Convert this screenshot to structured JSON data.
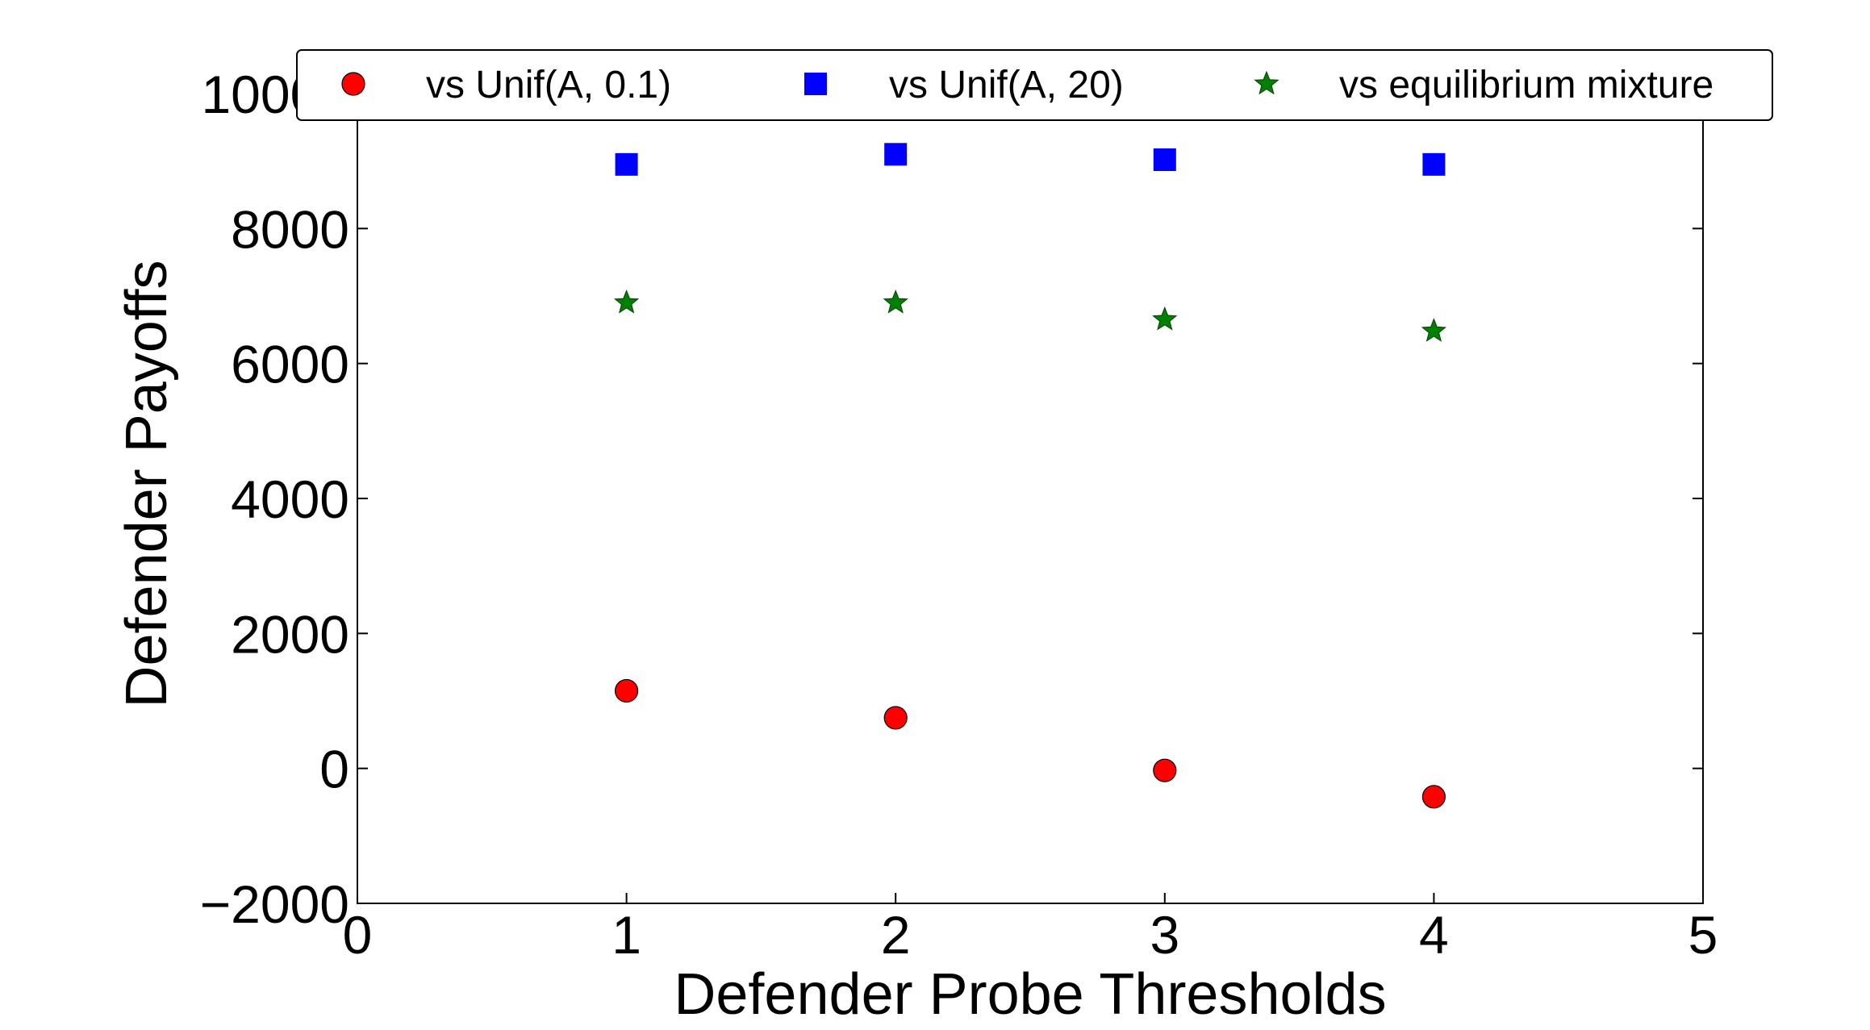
{
  "chart_data": {
    "type": "scatter",
    "title": "",
    "xlabel": "Defender Probe Thresholds",
    "ylabel": "Defender Payoffs",
    "xlim": [
      0,
      5
    ],
    "ylim": [
      -2000,
      10000
    ],
    "xticks": [
      0,
      1,
      2,
      3,
      4,
      5
    ],
    "yticks": [
      -2000,
      0,
      2000,
      4000,
      6000,
      8000,
      10000
    ],
    "xtick_labels": [
      "0",
      "1",
      "2",
      "3",
      "4",
      "5"
    ],
    "ytick_labels": [
      "−2000",
      "0",
      "2000",
      "4000",
      "6000",
      "8000",
      "10000"
    ],
    "grid": false,
    "legend_position": "top",
    "series": [
      {
        "name": "vs Unif(A, 0.1)",
        "marker": "circle",
        "color": "#ff0000",
        "x": [
          1,
          2,
          3,
          4
        ],
        "y": [
          1150,
          750,
          -30,
          -420
        ]
      },
      {
        "name": "vs Unif(A, 20)",
        "marker": "square",
        "color": "#0000ff",
        "x": [
          1,
          2,
          3,
          4
        ],
        "y": [
          8950,
          9100,
          9020,
          8950
        ]
      },
      {
        "name": "vs equilibrium mixture",
        "marker": "star",
        "color": "#008000",
        "x": [
          1,
          2,
          3,
          4
        ],
        "y": [
          6900,
          6900,
          6650,
          6480
        ]
      }
    ]
  }
}
